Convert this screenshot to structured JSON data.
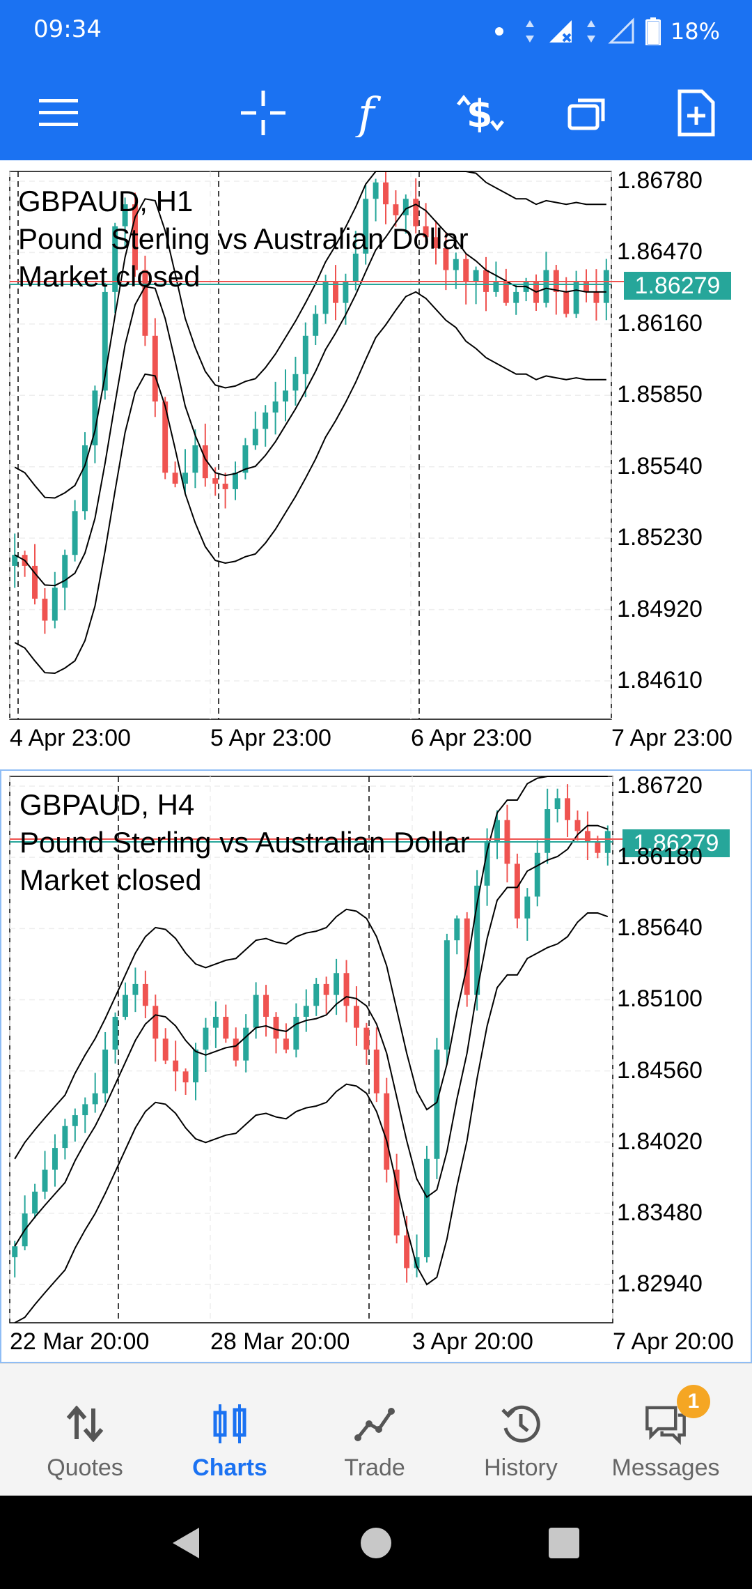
{
  "status_bar": {
    "time": "09:34",
    "battery": "18%",
    "icons": [
      "notification-dot-icon",
      "data-arrows-icon",
      "signal-x-icon",
      "signal-empty-icon",
      "battery-icon"
    ]
  },
  "toolbar": {
    "items": [
      {
        "name": "menu-icon"
      },
      {
        "name": "crosshair-icon"
      },
      {
        "name": "indicators-f-icon"
      },
      {
        "name": "new-order-dollar-icon"
      },
      {
        "name": "window-switch-icon"
      },
      {
        "name": "new-document-icon"
      }
    ]
  },
  "charts": [
    {
      "symbol_line": "GBPAUD, H1",
      "description": "Pound Sterling vs Australian Dollar",
      "market_status": "Market closed",
      "price_label": "1.86279",
      "y_ticks": [
        "1.86780",
        "1.86470",
        "1.86160",
        "1.85850",
        "1.85540",
        "1.85230",
        "1.84920",
        "1.84610"
      ],
      "x_ticks": [
        "4 Apr 23:00",
        "5 Apr 23:00",
        "6 Apr 23:00",
        "7 Apr 23:00"
      ],
      "chart_data": {
        "type": "candlestick",
        "ylim": [
          1.844,
          1.869
        ],
        "indicator": "Bollinger Bands",
        "last_price": 1.86279
      }
    },
    {
      "symbol_line": "GBPAUD, H4",
      "description": "Pound Sterling vs Australian Dollar",
      "market_status": "Market closed",
      "price_label": "1.86279",
      "y_ticks": [
        "1.86720",
        "1.86180",
        "1.85640",
        "1.85100",
        "1.84560",
        "1.84020",
        "1.83480",
        "1.82940"
      ],
      "x_ticks": [
        "22 Mar 20:00",
        "28 Mar 20:00",
        "3 Apr 20:00",
        "7 Apr 20:00"
      ],
      "chart_data": {
        "type": "candlestick",
        "ylim": [
          1.824,
          1.8697
        ],
        "indicator": "Bollinger Bands",
        "last_price": 1.86279
      }
    }
  ],
  "bottom_nav": {
    "items": [
      {
        "label": "Quotes",
        "icon": "quotes-arrows-icon"
      },
      {
        "label": "Charts",
        "icon": "charts-candles-icon"
      },
      {
        "label": "Trade",
        "icon": "trade-line-icon"
      },
      {
        "label": "History",
        "icon": "history-clock-icon"
      },
      {
        "label": "Messages",
        "icon": "messages-chat-icon",
        "badge": "1"
      }
    ],
    "active": "Charts"
  },
  "colors": {
    "accent": "#1b72f2",
    "bull": "#26a69a",
    "bear": "#ef5350"
  }
}
